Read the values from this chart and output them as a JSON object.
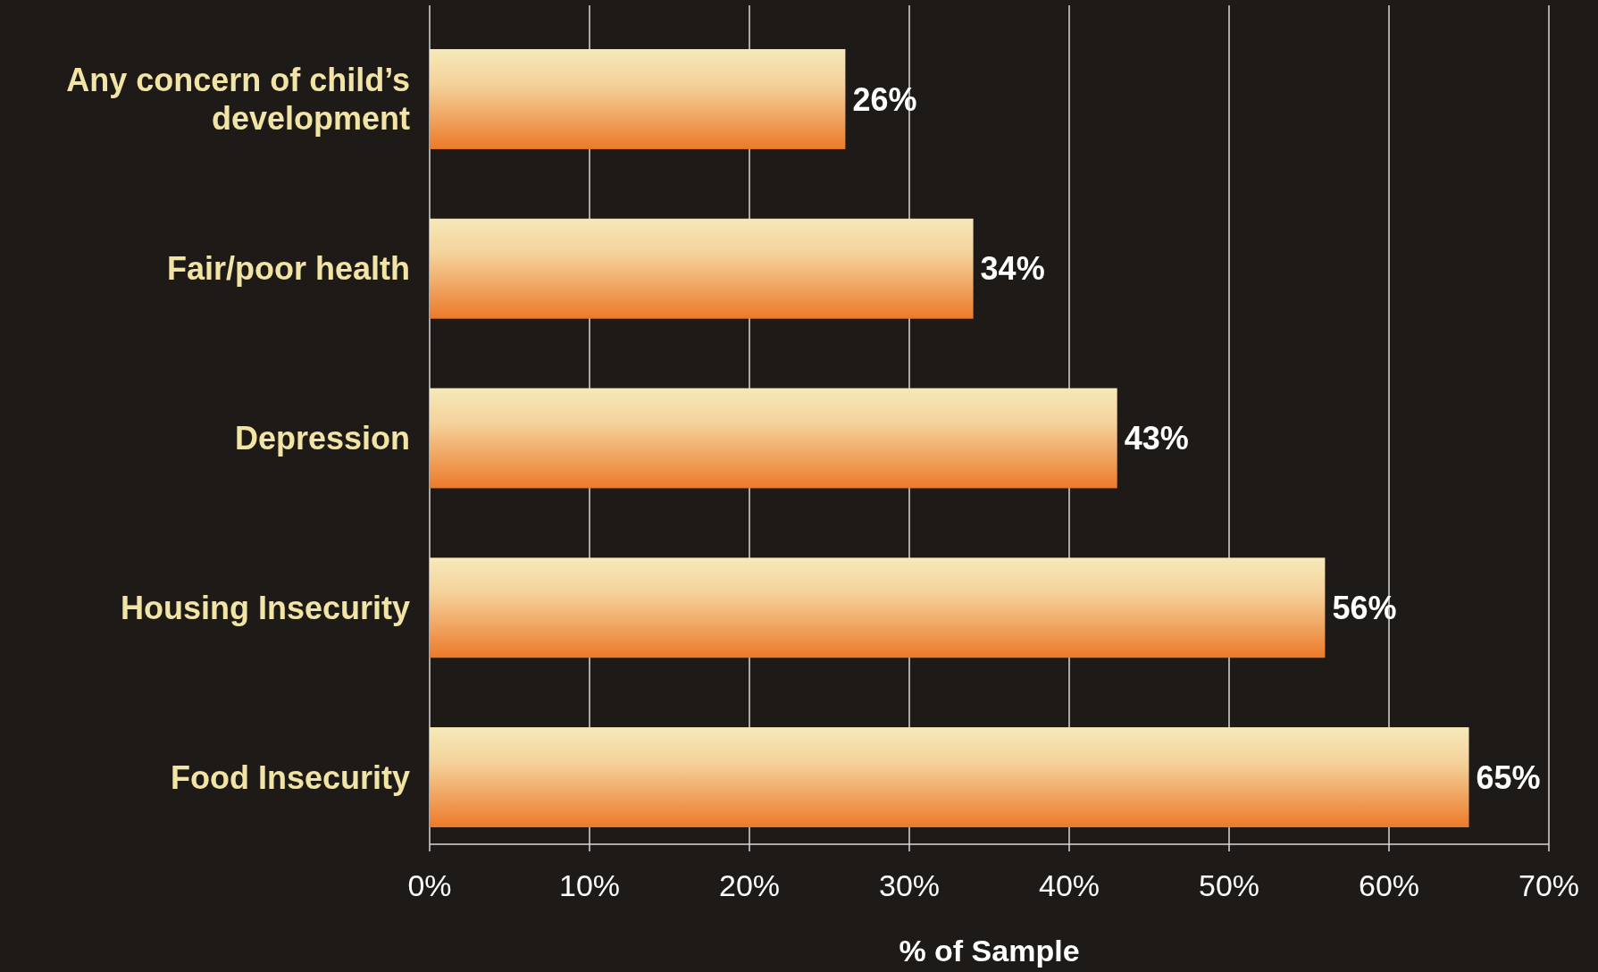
{
  "chart_data": {
    "type": "bar",
    "orientation": "horizontal",
    "xlabel": "% of Sample",
    "categories": [
      "Any concern of child’s development",
      "Fair/poor health",
      "Depression",
      "Housing Insecurity",
      "Food Insecurity"
    ],
    "values": [
      26,
      34,
      43,
      56,
      65
    ],
    "color": "#ec7a2a",
    "value_labels": [
      "26%",
      "34%",
      "43%",
      "56%",
      "65%"
    ],
    "xlim": [
      0,
      70
    ],
    "xticks": [
      {
        "value": 0,
        "label": "0%"
      },
      {
        "value": 10,
        "label": "10%"
      },
      {
        "value": 20,
        "label": "20%"
      },
      {
        "value": 30,
        "label": "30%"
      },
      {
        "value": 40,
        "label": "40%"
      },
      {
        "value": 50,
        "label": "50%"
      },
      {
        "value": 60,
        "label": "60%"
      },
      {
        "value": 70,
        "label": "70%"
      }
    ],
    "grid": "x"
  }
}
